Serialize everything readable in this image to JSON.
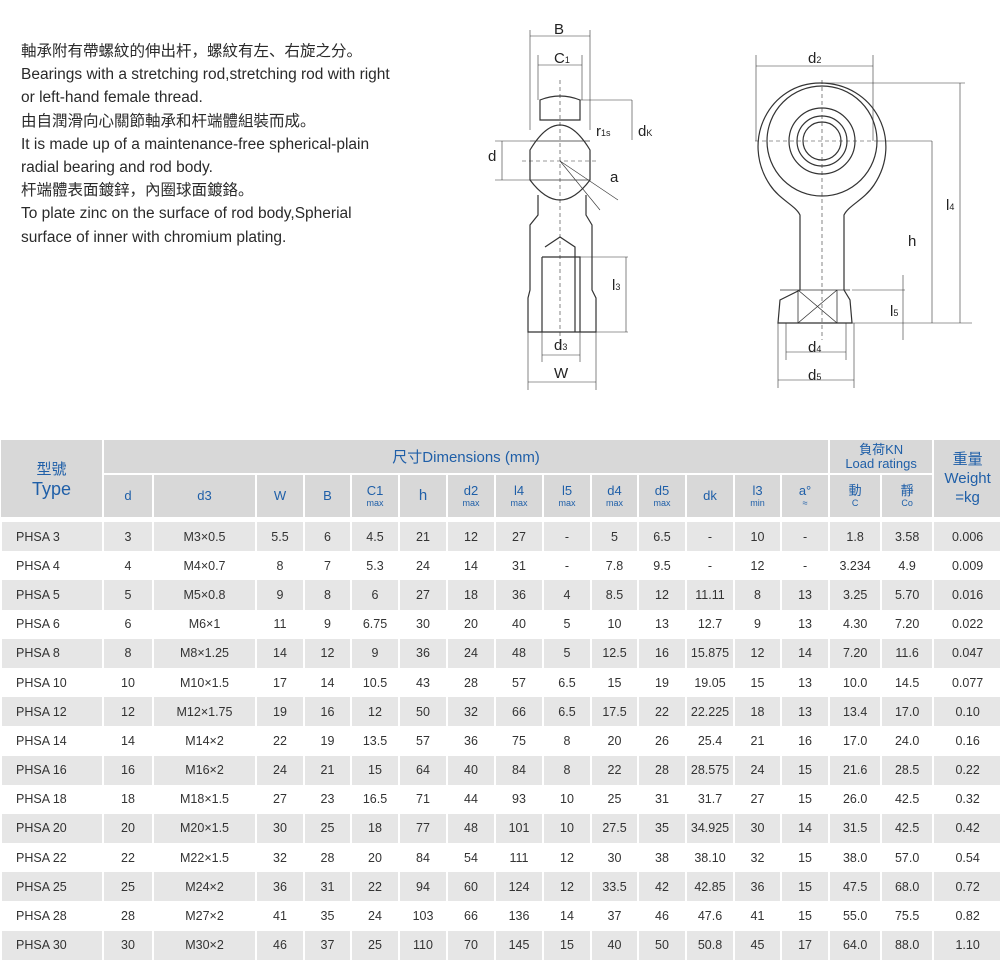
{
  "description": [
    "軸承附有帶螺紋的伸出杆，螺紋有左、右旋之分。",
    "Bearings with a stretching rod,stretching rod with right",
    "or left-hand female thread.",
    "由自潤滑向心關節軸承和杆端體組裝而成。",
    "It is made up of a maintenance-free spherical-plain",
    "radial bearing and rod body.",
    "杆端體表面鍍鋅，內圈球面鍍鉻。",
    "To plate zinc on the surface of rod body,Spherial",
    "surface of inner  with chromium plating."
  ],
  "drawing_labels": {
    "B": "B",
    "C1": "C",
    "C1_sub": "1",
    "r1s": "r",
    "r1s_sub": "1s",
    "dk": "d",
    "dk_sub": "K",
    "d": "d",
    "a": "a",
    "l3": "l",
    "l3_sub": "3",
    "d3": "d",
    "d3_sub": "3",
    "W": "W",
    "d2": "d",
    "d2_sub": "2",
    "l4": "l",
    "l4_sub": "4",
    "h": "h",
    "l5": "l",
    "l5_sub": "5",
    "d4": "d",
    "d4_sub": "4",
    "d5": "d",
    "d5_sub": "5"
  },
  "table": {
    "type_cn": "型號",
    "type_en": "Type",
    "dimensions": "尺寸Dimensions (mm)",
    "load_cn": "負荷KN",
    "load_en": "Load ratings",
    "weight_cn": "重量",
    "weight_en": "Weight",
    "weight_unit": "=kg",
    "columns": [
      {
        "main": "d",
        "sub": ""
      },
      {
        "main": "d3",
        "sub": ""
      },
      {
        "main": "W",
        "sub": ""
      },
      {
        "main": "B",
        "sub": ""
      },
      {
        "main": "C1",
        "sub": "max"
      },
      {
        "main": "h",
        "sub": ""
      },
      {
        "main": "d2",
        "sub": "max"
      },
      {
        "main": "l4",
        "sub": "max"
      },
      {
        "main": "l5",
        "sub": "max"
      },
      {
        "main": "d4",
        "sub": "max"
      },
      {
        "main": "d5",
        "sub": "max"
      },
      {
        "main": "dk",
        "sub": ""
      },
      {
        "main": "l3",
        "sub": "min"
      },
      {
        "main": "a°",
        "sub": "≈"
      },
      {
        "main": "動",
        "sub": "C"
      },
      {
        "main": "靜",
        "sub": "Co"
      }
    ],
    "rows": [
      [
        "PHSA  3",
        "3",
        "M3×0.5",
        "5.5",
        "6",
        "4.5",
        "21",
        "12",
        "27",
        "-",
        "5",
        "6.5",
        "-",
        "10",
        "-",
        "1.8",
        "3.58",
        "0.006"
      ],
      [
        "PHSA  4",
        "4",
        "M4×0.7",
        "8",
        "7",
        "5.3",
        "24",
        "14",
        "31",
        "-",
        "7.8",
        "9.5",
        "-",
        "12",
        "-",
        "3.234",
        "4.9",
        "0.009"
      ],
      [
        "PHSA  5",
        "5",
        "M5×0.8",
        "9",
        "8",
        "6",
        "27",
        "18",
        "36",
        "4",
        "8.5",
        "12",
        "11.11",
        "8",
        "13",
        "3.25",
        "5.70",
        "0.016"
      ],
      [
        "PHSA  6",
        "6",
        "M6×1",
        "11",
        "9",
        "6.75",
        "30",
        "20",
        "40",
        "5",
        "10",
        "13",
        "12.7",
        "9",
        "13",
        "4.30",
        "7.20",
        "0.022"
      ],
      [
        "PHSA  8",
        "8",
        "M8×1.25",
        "14",
        "12",
        "9",
        "36",
        "24",
        "48",
        "5",
        "12.5",
        "16",
        "15.875",
        "12",
        "14",
        "7.20",
        "11.6",
        "0.047"
      ],
      [
        "PHSA 10",
        "10",
        "M10×1.5",
        "17",
        "14",
        "10.5",
        "43",
        "28",
        "57",
        "6.5",
        "15",
        "19",
        "19.05",
        "15",
        "13",
        "10.0",
        "14.5",
        "0.077"
      ],
      [
        "PHSA 12",
        "12",
        "M12×1.75",
        "19",
        "16",
        "12",
        "50",
        "32",
        "66",
        "6.5",
        "17.5",
        "22",
        "22.225",
        "18",
        "13",
        "13.4",
        "17.0",
        "0.10"
      ],
      [
        "PHSA 14",
        "14",
        "M14×2",
        "22",
        "19",
        "13.5",
        "57",
        "36",
        "75",
        "8",
        "20",
        "26",
        "25.4",
        "21",
        "16",
        "17.0",
        "24.0",
        "0.16"
      ],
      [
        "PHSA 16",
        "16",
        "M16×2",
        "24",
        "21",
        "15",
        "64",
        "40",
        "84",
        "8",
        "22",
        "28",
        "28.575",
        "24",
        "15",
        "21.6",
        "28.5",
        "0.22"
      ],
      [
        "PHSA 18",
        "18",
        "M18×1.5",
        "27",
        "23",
        "16.5",
        "71",
        "44",
        "93",
        "10",
        "25",
        "31",
        "31.7",
        "27",
        "15",
        "26.0",
        "42.5",
        "0.32"
      ],
      [
        "PHSA 20",
        "20",
        "M20×1.5",
        "30",
        "25",
        "18",
        "77",
        "48",
        "101",
        "10",
        "27.5",
        "35",
        "34.925",
        "30",
        "14",
        "31.5",
        "42.5",
        "0.42"
      ],
      [
        "PHSA 22",
        "22",
        "M22×1.5",
        "32",
        "28",
        "20",
        "84",
        "54",
        "111",
        "12",
        "30",
        "38",
        "38.10",
        "32",
        "15",
        "38.0",
        "57.0",
        "0.54"
      ],
      [
        "PHSA 25",
        "25",
        "M24×2",
        "36",
        "31",
        "22",
        "94",
        "60",
        "124",
        "12",
        "33.5",
        "42",
        "42.85",
        "36",
        "15",
        "47.5",
        "68.0",
        "0.72"
      ],
      [
        "PHSA 28",
        "28",
        "M27×2",
        "41",
        "35",
        "24",
        "103",
        "66",
        "136",
        "14",
        "37",
        "46",
        "47.6",
        "41",
        "15",
        "55.0",
        "75.5",
        "0.82"
      ],
      [
        "PHSA 30",
        "30",
        "M30×2",
        "46",
        "37",
        "25",
        "110",
        "70",
        "145",
        "15",
        "40",
        "50",
        "50.8",
        "45",
        "17",
        "64.0",
        "88.0",
        "1.10"
      ]
    ]
  },
  "colors": {
    "header_bg": "#d8d8d8",
    "header_text": "#1f5fa8",
    "row_alt": "#e6e6e6"
  }
}
